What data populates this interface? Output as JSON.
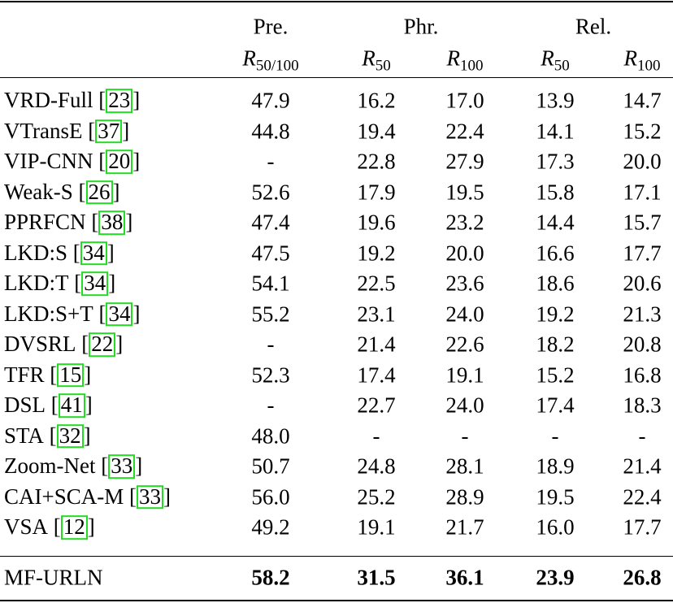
{
  "table": {
    "groups": [
      "Pre.",
      "Phr.",
      "Rel."
    ],
    "metrics": [
      {
        "symbol": "R",
        "subscript": "50/100"
      },
      {
        "symbol": "R",
        "subscript": "50"
      },
      {
        "symbol": "R",
        "subscript": "100"
      },
      {
        "symbol": "R",
        "subscript": "50"
      },
      {
        "symbol": "R",
        "subscript": "100"
      }
    ],
    "rows": [
      {
        "method": "VRD-Full",
        "ref": "23",
        "values": [
          "47.9",
          "16.2",
          "17.0",
          "13.9",
          "14.7"
        ]
      },
      {
        "method": "VTransE",
        "ref": "37",
        "values": [
          "44.8",
          "19.4",
          "22.4",
          "14.1",
          "15.2"
        ]
      },
      {
        "method": "VIP-CNN",
        "ref": "20",
        "values": [
          "-",
          "22.8",
          "27.9",
          "17.3",
          "20.0"
        ]
      },
      {
        "method": "Weak-S",
        "ref": "26",
        "values": [
          "52.6",
          "17.9",
          "19.5",
          "15.8",
          "17.1"
        ]
      },
      {
        "method": "PPRFCN",
        "ref": "38",
        "values": [
          "47.4",
          "19.6",
          "23.2",
          "14.4",
          "15.7"
        ]
      },
      {
        "method": "LKD:S",
        "ref": "34",
        "values": [
          "47.5",
          "19.2",
          "20.0",
          "16.6",
          "17.7"
        ]
      },
      {
        "method": "LKD:T",
        "ref": "34",
        "values": [
          "54.1",
          "22.5",
          "23.6",
          "18.6",
          "20.6"
        ]
      },
      {
        "method": "LKD:S+T",
        "ref": "34",
        "values": [
          "55.2",
          "23.1",
          "24.0",
          "19.2",
          "21.3"
        ]
      },
      {
        "method": "DVSRL",
        "ref": "22",
        "values": [
          "-",
          "21.4",
          "22.6",
          "18.2",
          "20.8"
        ]
      },
      {
        "method": "TFR",
        "ref": "15",
        "values": [
          "52.3",
          "17.4",
          "19.1",
          "15.2",
          "16.8"
        ]
      },
      {
        "method": "DSL",
        "ref": "41",
        "values": [
          "-",
          "22.7",
          "24.0",
          "17.4",
          "18.3"
        ]
      },
      {
        "method": "STA",
        "ref": "32",
        "values": [
          "48.0",
          "-",
          "-",
          "-",
          "-"
        ]
      },
      {
        "method": "Zoom-Net",
        "ref": "33",
        "values": [
          "50.7",
          "24.8",
          "28.1",
          "18.9",
          "21.4"
        ]
      },
      {
        "method": "CAI+SCA-M",
        "ref": "33",
        "values": [
          "56.0",
          "25.2",
          "28.9",
          "19.5",
          "22.4"
        ]
      },
      {
        "method": "VSA",
        "ref": "12",
        "values": [
          "49.2",
          "19.1",
          "21.7",
          "16.0",
          "17.7"
        ]
      }
    ],
    "final": {
      "method": "MF-URLN",
      "values": [
        "58.2",
        "31.5",
        "36.1",
        "23.9",
        "26.8"
      ]
    }
  }
}
